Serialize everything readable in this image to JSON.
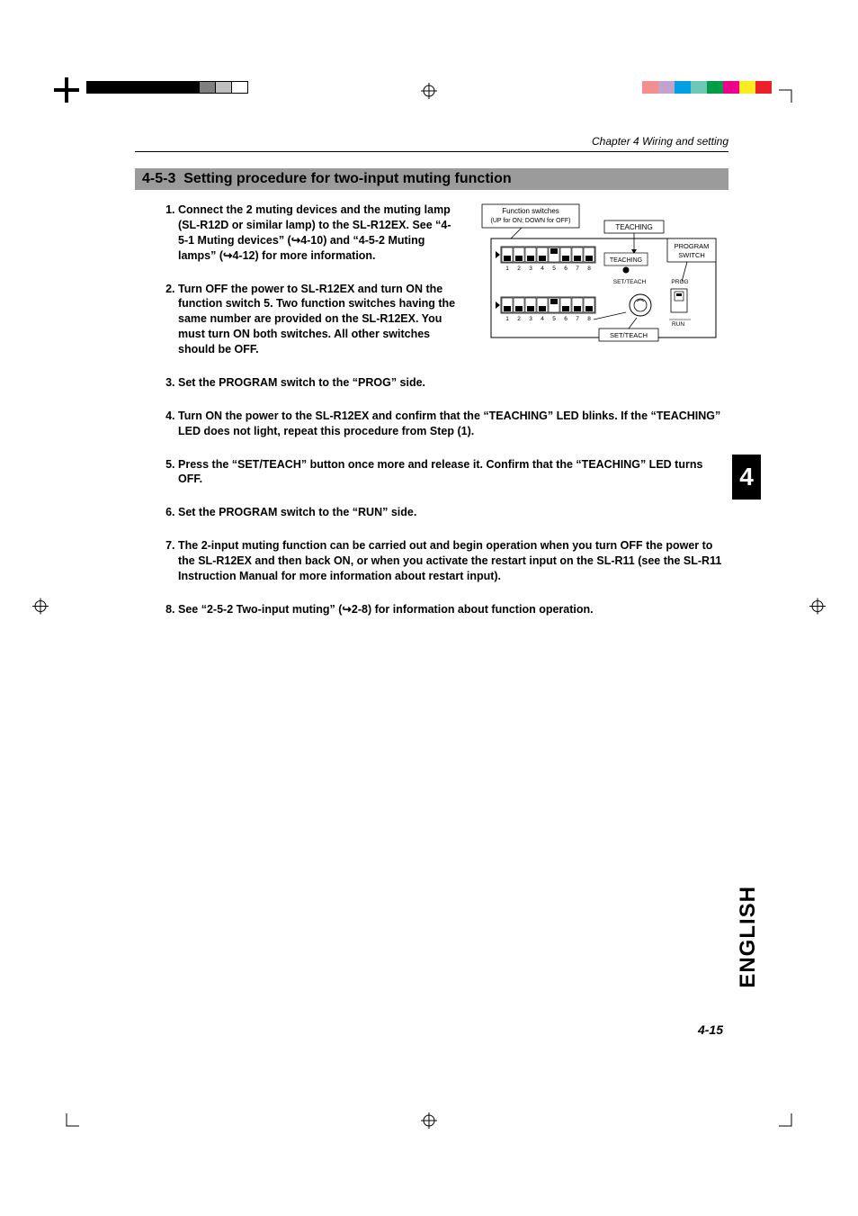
{
  "header": {
    "chapter": "Chapter 4  Wiring and setting"
  },
  "section": {
    "number": "4-5-3",
    "title": "Setting procedure for two-input muting function"
  },
  "steps": [
    "Connect the 2 muting devices and the muting lamp (SL-R12D or similar lamp) to the SL-R12EX. See “4-5-1 Muting devices” (↪4-10) and “4-5-2 Muting lamps” (↪4-12) for more information.",
    "Turn OFF the power to SL-R12EX and turn ON the function switch 5. Two function switches having the same number are provided on the SL-R12EX. You must turn ON both switches. All other switches should be OFF.",
    "Set the PROGRAM switch to the “PROG” side.",
    "Turn ON the power to the SL-R12EX and confirm that the “TEACHING” LED blinks. If the “TEACHING” LED does not light, repeat this procedure from Step (1).",
    "Press the “SET/TEACH” button once more and release it. Confirm that the “TEACHING” LED turns OFF.",
    "Set the PROGRAM switch to the “RUN” side.",
    "The 2-input muting function can be carried out and begin operation when you turn OFF the power to the SL-R12EX and then back ON, or when you activate the restart input on the SL-R11 (see the SL-R11 Instruction Manual for more information about restart input).",
    "See “2-5-2 Two-input muting” (↪2-8) for information about function operation."
  ],
  "diagram": {
    "box_title1": "Function switches",
    "box_title2": "(UP for ON; DOWN for OFF)",
    "label_teaching": "TEACHING",
    "label_teaching_led": "TEACHING",
    "label_program_switch": "PROGRAM SWITCH",
    "label_set_teach_btn": "SET/TEACH",
    "label_set_teach_callout": "SET/TEACH",
    "label_prog": "PROG",
    "label_run": "RUN",
    "switch_numbers": [
      "1",
      "2",
      "3",
      "4",
      "5",
      "6",
      "7",
      "8"
    ],
    "switch_states_row1": [
      0,
      0,
      0,
      0,
      1,
      0,
      0,
      0
    ],
    "switch_states_row2": [
      0,
      0,
      0,
      0,
      1,
      0,
      0,
      0
    ]
  },
  "side": {
    "chapter_num": "4",
    "language": "ENGLISH"
  },
  "footer": {
    "page": "4-15"
  },
  "colorbar_black": [
    "#000000",
    "#000000",
    "#000000",
    "#000000",
    "#000000",
    "#000000",
    "#000000",
    "#7f7f7f",
    "#bfbfbf",
    "#ffffff"
  ],
  "colorbar_color": [
    "#ec2027",
    "#fbec21",
    "#ec008c",
    "#009c47",
    "#6fc7b6",
    "#00a0e3",
    "#c2a3cb",
    "#f28f8f"
  ],
  "style": {
    "section_bg": "#9b9b9b",
    "text_color": "#000000",
    "page_bg": "#ffffff"
  }
}
